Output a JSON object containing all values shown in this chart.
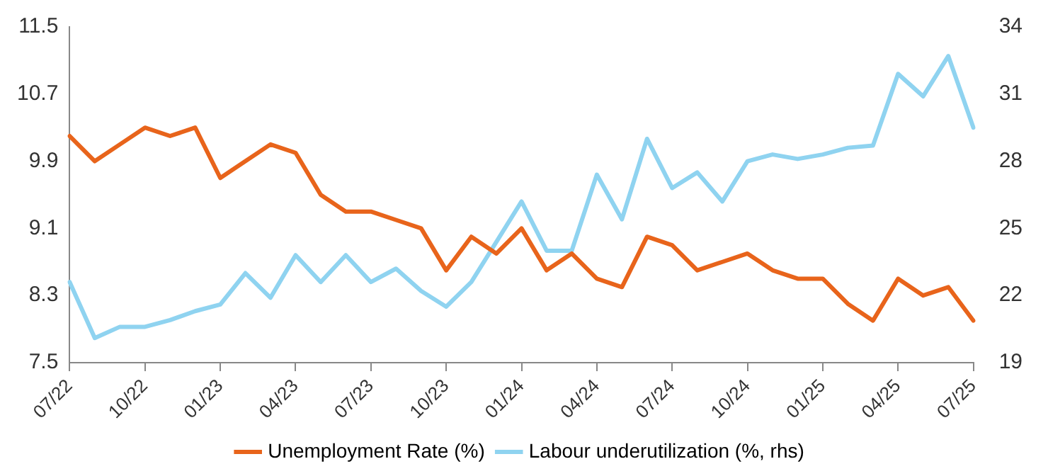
{
  "chart_data": {
    "type": "line",
    "categories": [
      "07/22",
      null,
      null,
      "10/22",
      null,
      null,
      "01/23",
      null,
      null,
      "04/23",
      null,
      null,
      "07/23",
      null,
      null,
      "10/23",
      null,
      null,
      "01/24",
      null,
      null,
      "04/24",
      null,
      null,
      "07/24",
      null,
      null,
      "10/24",
      null,
      null,
      "01/25",
      null,
      null,
      "04/25",
      null,
      null,
      "07/25"
    ],
    "series": [
      {
        "name": "Unemployment Rate (%)",
        "color": "#e8641b",
        "values": [
          10.2,
          9.9,
          10.1,
          10.3,
          10.2,
          10.3,
          9.7,
          9.9,
          10.1,
          10.0,
          9.5,
          9.3,
          9.3,
          9.2,
          9.1,
          8.6,
          9.0,
          8.8,
          9.1,
          8.6,
          8.8,
          8.5,
          8.4,
          9.0,
          8.9,
          8.6,
          8.7,
          8.8,
          8.6,
          8.5,
          8.5,
          8.2,
          8.0,
          8.5,
          8.3,
          8.4,
          8.0
        ]
      },
      {
        "name": "Labour underutilization (%, rhs)",
        "color": "#8fd3f0",
        "axis": "y2",
        "values": [
          22.6,
          20.1,
          20.6,
          20.6,
          20.9,
          21.3,
          21.6,
          23.0,
          21.9,
          23.8,
          22.6,
          23.8,
          22.6,
          23.2,
          22.2,
          21.5,
          22.6,
          24.4,
          26.2,
          24.0,
          24.0,
          27.4,
          25.4,
          29.0,
          26.8,
          27.5,
          26.2,
          28.0,
          28.3,
          28.1,
          28.3,
          28.6,
          28.7,
          31.9,
          30.9,
          32.7,
          29.5
        ]
      }
    ],
    "ylim": [
      7.5,
      11.5
    ],
    "yticks": [
      7.5,
      8.3,
      9.1,
      9.9,
      10.7,
      11.5
    ],
    "y2lim": [
      19,
      34
    ],
    "y2ticks": [
      19,
      22,
      25,
      28,
      31,
      34
    ],
    "grid": false,
    "legend": "bottom",
    "marker": "none",
    "line_style": "solid"
  }
}
